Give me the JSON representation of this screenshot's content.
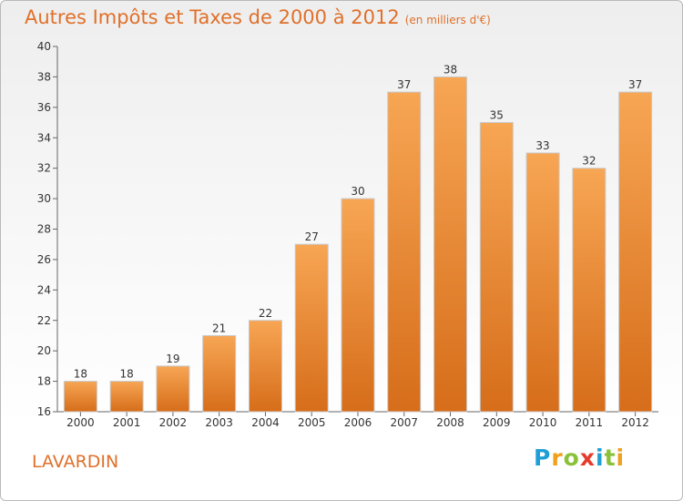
{
  "title": "Autres Impôts et Taxes de 2000 à 2012",
  "subtitle": "(en milliers d'€)",
  "commune": "LAVARDIN",
  "logo": {
    "letters": [
      "P",
      "r",
      "o",
      "x",
      "i",
      "t",
      "i"
    ],
    "colors": [
      "#1f9fd6",
      "#f0a01c",
      "#89c23a",
      "#e53b2d",
      "#1f9fd6",
      "#89c23a",
      "#f0a01c"
    ]
  },
  "colors": {
    "bar_top": "#f7a654",
    "bar_bottom": "#d66d1a",
    "title": "#e0702a"
  },
  "chart_data": {
    "type": "bar",
    "title": "Autres Impôts et Taxes de 2000 à 2012",
    "subtitle": "(en milliers d'€)",
    "categories": [
      "2000",
      "2001",
      "2002",
      "2003",
      "2004",
      "2005",
      "2006",
      "2007",
      "2008",
      "2009",
      "2010",
      "2011",
      "2012"
    ],
    "values": [
      18,
      18,
      19,
      21,
      22,
      27,
      30,
      37,
      38,
      35,
      33,
      32,
      37
    ],
    "data_labels": [
      "18",
      "18",
      "19",
      "21",
      "22",
      "27",
      "30",
      "37",
      "38",
      "35",
      "33",
      "32",
      "37"
    ],
    "yticks": [
      "16",
      "18",
      "20",
      "22",
      "24",
      "26",
      "28",
      "30",
      "32",
      "34",
      "36",
      "38",
      "40"
    ],
    "ylim": [
      16,
      40
    ],
    "grid": false,
    "xlabel": "",
    "ylabel": ""
  }
}
